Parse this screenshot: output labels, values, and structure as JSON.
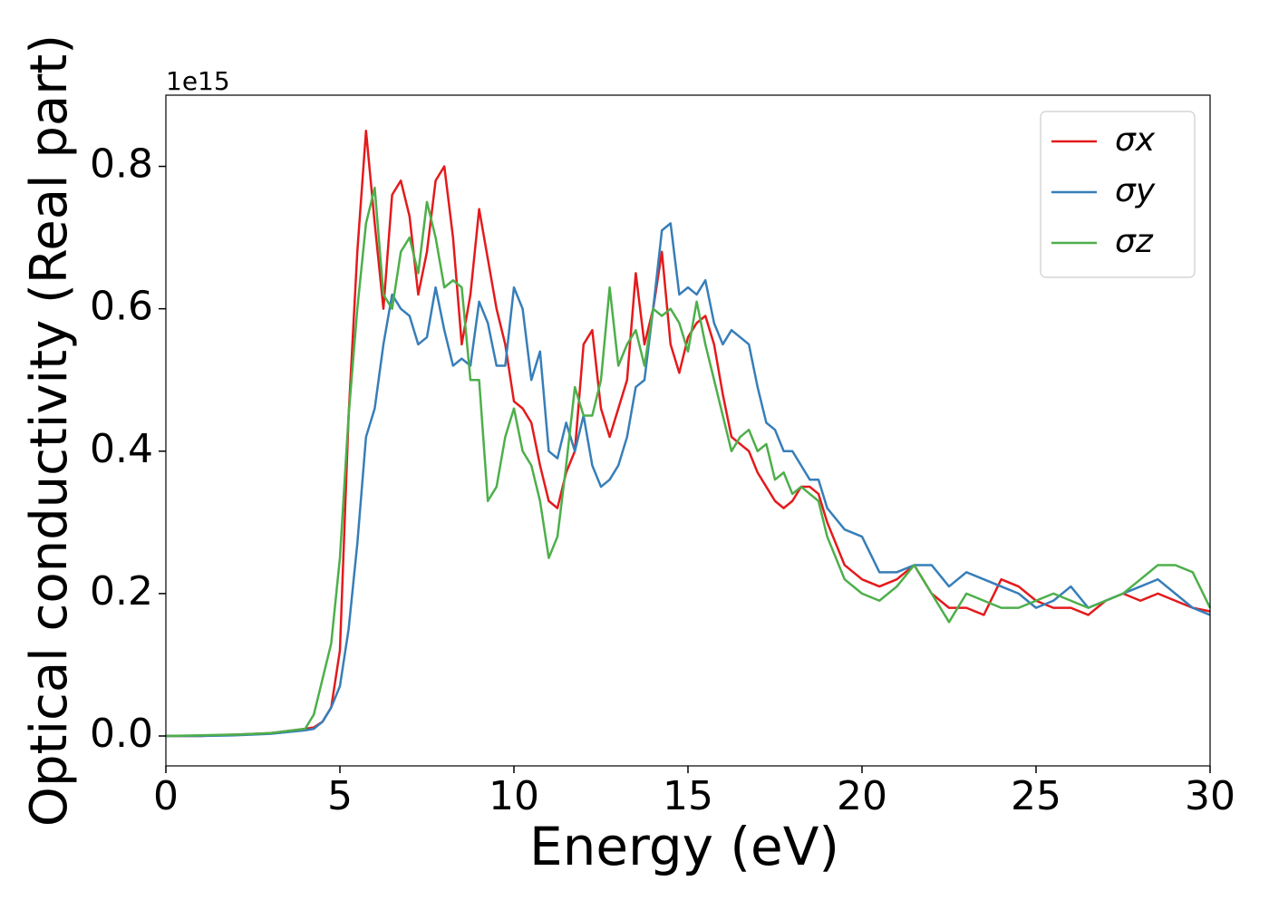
{
  "chart_data": {
    "type": "line",
    "xlabel": "Energy (eV)",
    "ylabel": "Optical conductivity (Real part)",
    "offset_label": "1e15",
    "x": [
      0,
      1,
      2,
      3,
      4,
      4.25,
      4.5,
      4.75,
      5,
      5.25,
      5.5,
      5.75,
      6,
      6.25,
      6.5,
      6.75,
      7,
      7.25,
      7.5,
      7.75,
      8,
      8.25,
      8.5,
      8.75,
      9,
      9.25,
      9.5,
      9.75,
      10,
      10.25,
      10.5,
      10.75,
      11,
      11.25,
      11.5,
      11.75,
      12,
      12.25,
      12.5,
      12.75,
      13,
      13.25,
      13.5,
      13.75,
      14,
      14.25,
      14.5,
      14.75,
      15,
      15.25,
      15.5,
      15.75,
      16,
      16.25,
      16.5,
      16.75,
      17,
      17.25,
      17.5,
      17.75,
      18,
      18.25,
      18.5,
      18.75,
      19,
      19.5,
      20,
      20.5,
      21,
      21.5,
      22,
      22.5,
      23,
      23.5,
      24,
      24.5,
      25,
      25.5,
      26,
      26.5,
      27,
      27.5,
      28,
      28.5,
      29,
      29.5,
      30
    ],
    "series": [
      {
        "name": "σx",
        "color": "#e41a1c",
        "values": [
          0,
          0,
          0.002,
          0.004,
          0.01,
          0.012,
          0.02,
          0.04,
          0.12,
          0.45,
          0.68,
          0.85,
          0.72,
          0.6,
          0.76,
          0.78,
          0.73,
          0.62,
          0.68,
          0.78,
          0.8,
          0.7,
          0.55,
          0.62,
          0.74,
          0.67,
          0.6,
          0.55,
          0.47,
          0.46,
          0.44,
          0.38,
          0.33,
          0.32,
          0.37,
          0.4,
          0.55,
          0.57,
          0.46,
          0.42,
          0.46,
          0.5,
          0.65,
          0.55,
          0.6,
          0.68,
          0.55,
          0.51,
          0.56,
          0.58,
          0.59,
          0.55,
          0.48,
          0.42,
          0.41,
          0.4,
          0.37,
          0.35,
          0.33,
          0.32,
          0.33,
          0.35,
          0.35,
          0.34,
          0.3,
          0.24,
          0.22,
          0.21,
          0.22,
          0.24,
          0.2,
          0.18,
          0.18,
          0.17,
          0.22,
          0.21,
          0.19,
          0.18,
          0.18,
          0.17,
          0.19,
          0.2,
          0.19,
          0.2,
          0.19,
          0.18,
          0.175
        ]
      },
      {
        "name": "σy",
        "color": "#377eb8",
        "values": [
          0,
          0,
          0.001,
          0.003,
          0.008,
          0.01,
          0.02,
          0.04,
          0.07,
          0.15,
          0.27,
          0.42,
          0.46,
          0.55,
          0.62,
          0.6,
          0.59,
          0.55,
          0.56,
          0.63,
          0.57,
          0.52,
          0.53,
          0.52,
          0.61,
          0.58,
          0.52,
          0.52,
          0.63,
          0.6,
          0.5,
          0.54,
          0.4,
          0.39,
          0.44,
          0.4,
          0.45,
          0.38,
          0.35,
          0.36,
          0.38,
          0.42,
          0.49,
          0.5,
          0.6,
          0.71,
          0.72,
          0.62,
          0.63,
          0.62,
          0.64,
          0.58,
          0.55,
          0.57,
          0.56,
          0.55,
          0.49,
          0.44,
          0.43,
          0.4,
          0.4,
          0.38,
          0.36,
          0.36,
          0.32,
          0.29,
          0.28,
          0.23,
          0.23,
          0.24,
          0.24,
          0.21,
          0.23,
          0.22,
          0.21,
          0.2,
          0.18,
          0.19,
          0.21,
          0.18,
          0.19,
          0.2,
          0.21,
          0.22,
          0.2,
          0.18,
          0.17
        ]
      },
      {
        "name": "σz",
        "color": "#4daf4a",
        "values": [
          0,
          0.001,
          0.002,
          0.004,
          0.01,
          0.03,
          0.08,
          0.13,
          0.25,
          0.45,
          0.6,
          0.72,
          0.77,
          0.62,
          0.6,
          0.68,
          0.7,
          0.65,
          0.75,
          0.7,
          0.63,
          0.64,
          0.63,
          0.5,
          0.5,
          0.33,
          0.35,
          0.42,
          0.46,
          0.4,
          0.38,
          0.33,
          0.25,
          0.28,
          0.38,
          0.49,
          0.45,
          0.45,
          0.5,
          0.63,
          0.52,
          0.55,
          0.57,
          0.52,
          0.6,
          0.59,
          0.6,
          0.58,
          0.54,
          0.61,
          0.55,
          0.5,
          0.45,
          0.4,
          0.42,
          0.43,
          0.4,
          0.41,
          0.36,
          0.37,
          0.34,
          0.35,
          0.34,
          0.33,
          0.28,
          0.22,
          0.2,
          0.19,
          0.21,
          0.24,
          0.2,
          0.16,
          0.2,
          0.19,
          0.18,
          0.18,
          0.19,
          0.2,
          0.19,
          0.18,
          0.19,
          0.2,
          0.22,
          0.24,
          0.24,
          0.23,
          0.18
        ]
      }
    ],
    "xlim": [
      0,
      30
    ],
    "xticks": [
      0,
      5,
      10,
      15,
      20,
      25,
      30
    ],
    "ylim": [
      -0.042,
      0.9
    ],
    "yticks": [
      {
        "value": 0,
        "label": "0.0"
      },
      0.2,
      0.4,
      0.6,
      0.8
    ],
    "grid": false,
    "legend": "upper right"
  }
}
